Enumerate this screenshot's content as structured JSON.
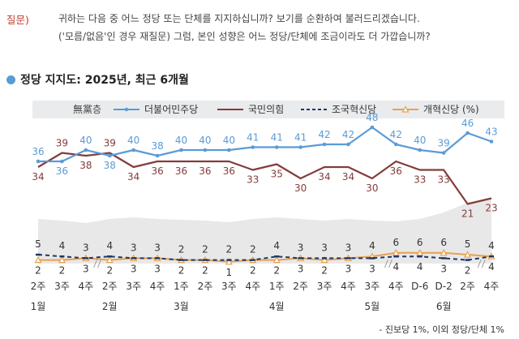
{
  "question": {
    "tag": "질문)",
    "line1": "귀하는 다음 중 어느 정당 또는 단체를 지지하십니까? 보기를 순환하여 불러드리겠습니다.",
    "line2": "('모름/없음'인 경우 재질문) 그럼, 본인 성향은 어느 정당/단체에 조금이라도 더 가깝습니까?"
  },
  "title": "정당 지지도: 2025년, 최근 6개월",
  "footnote": "- 진보당 1%, 이외 정당/단체 1%",
  "colors": {
    "dpk": "#5b9bd5",
    "ppp": "#843c3c",
    "rebuild": "#1f3864",
    "reform": "#e8a050",
    "independent": "#e8e8e8",
    "accent": "#5b9bd5"
  },
  "chart_data": {
    "type": "line",
    "categories": [
      "1월 2주",
      "1월 3주",
      "1월 4주",
      "2월 2주",
      "2월 3주",
      "2월 4주",
      "3월 1주",
      "3월 2주",
      "3월 3주",
      "3월 4주",
      "4월 1주",
      "4월 2주",
      "4월 3주",
      "4월 4주",
      "5월 3주",
      "5월 4주",
      "D-6",
      "D-2",
      "6월 2주",
      "6월 4주"
    ],
    "x_ticks": [
      "2주",
      "3주",
      "4주",
      "2주",
      "3주",
      "4주",
      "1주",
      "2주",
      "3주",
      "4주",
      "1주",
      "2주",
      "3주",
      "4주",
      "3주",
      "4주",
      "D-6",
      "D-2",
      "2주",
      "4주"
    ],
    "month_labels": [
      {
        "label": "1월",
        "index": 0
      },
      {
        "label": "2월",
        "index": 3
      },
      {
        "label": "3월",
        "index": 6
      },
      {
        "label": "4월",
        "index": 10
      },
      {
        "label": "5월",
        "index": 14
      },
      {
        "label": "6월",
        "index": 17
      }
    ],
    "series": [
      {
        "name": "無黨층",
        "type": "area",
        "values": [
          null,
          null,
          null,
          null,
          null,
          null,
          null,
          null,
          null,
          null,
          null,
          null,
          null,
          null,
          null,
          null,
          null,
          null,
          null,
          null
        ]
      },
      {
        "name": "더불어민주당",
        "values": [
          36,
          36,
          40,
          38,
          40,
          38,
          40,
          40,
          40,
          41,
          41,
          41,
          42,
          42,
          48,
          42,
          40,
          39,
          46,
          43
        ]
      },
      {
        "name": "국민의힘",
        "values": [
          34,
          39,
          38,
          39,
          34,
          36,
          36,
          36,
          36,
          33,
          35,
          30,
          34,
          34,
          30,
          36,
          33,
          33,
          21,
          23
        ]
      },
      {
        "name": "조국혁신당",
        "values": [
          5,
          4,
          3,
          4,
          3,
          3,
          2,
          2,
          2,
          2,
          4,
          3,
          3,
          3,
          3,
          4,
          4,
          3,
          2,
          4
        ]
      },
      {
        "name": "개혁신당 (%)",
        "values": [
          2,
          2,
          3,
          2,
          3,
          3,
          2,
          2,
          1,
          2,
          2,
          3,
          2,
          3,
          4,
          6,
          6,
          6,
          5,
          4
        ]
      }
    ],
    "ylim": [
      0,
      55
    ]
  }
}
